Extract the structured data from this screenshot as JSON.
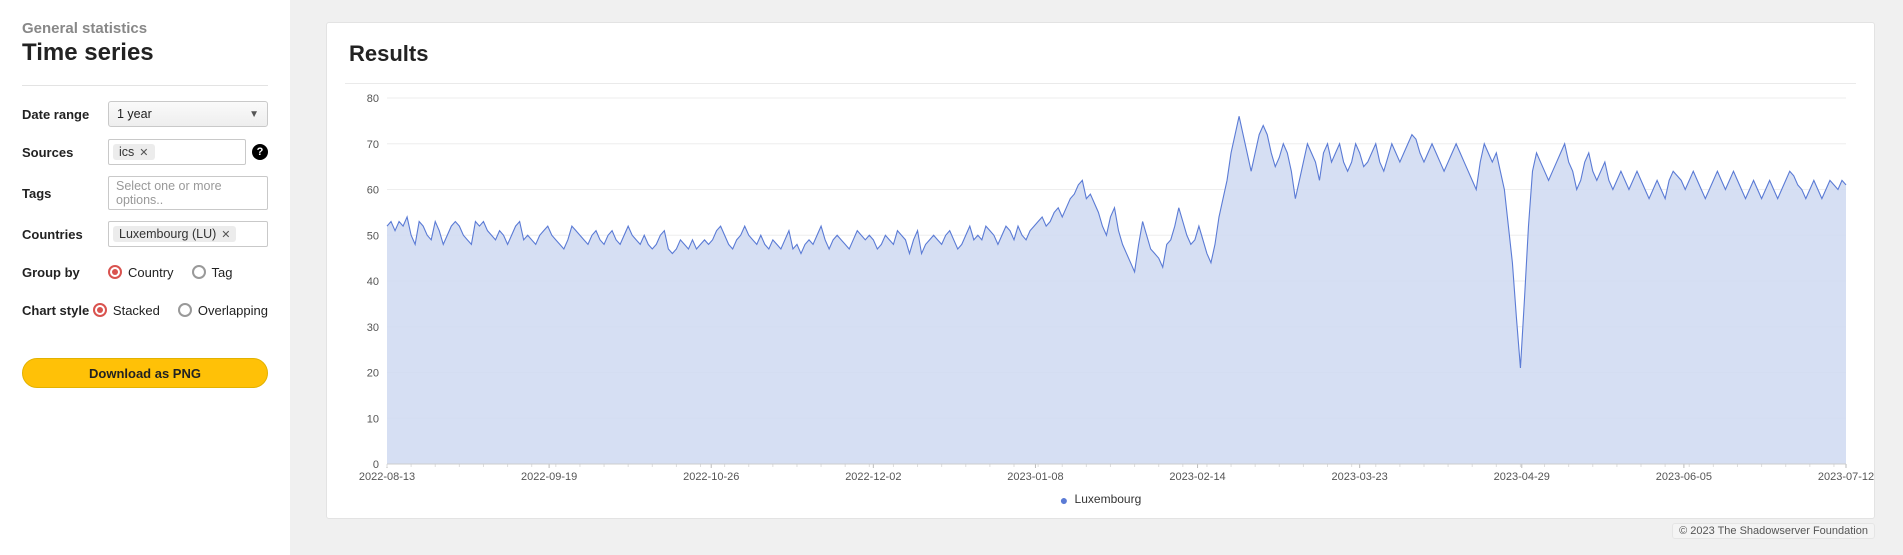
{
  "sidebar": {
    "subtitle": "General statistics",
    "title": "Time series",
    "fields": {
      "date_range": {
        "label": "Date range",
        "value": "1 year"
      },
      "sources": {
        "label": "Sources",
        "chips": [
          "ics"
        ],
        "has_help": true
      },
      "tags": {
        "label": "Tags",
        "placeholder": "Select one or more options.."
      },
      "countries": {
        "label": "Countries",
        "chips": [
          "Luxembourg (LU)"
        ]
      },
      "group_by": {
        "label": "Group by",
        "options": [
          "Country",
          "Tag"
        ],
        "selected": "Country"
      },
      "chart_style": {
        "label": "Chart style",
        "options": [
          "Stacked",
          "Overlapping"
        ],
        "selected": "Stacked"
      }
    },
    "download_label": "Download as PNG"
  },
  "panel": {
    "title": "Results",
    "chart": {
      "type": "area",
      "series_label": "Luxembourg",
      "line_color": "#5b7bd5",
      "fill_color": "#cfd9f1",
      "fill_opacity": 0.85,
      "background_color": "#ffffff",
      "grid_color": "#eeeeee",
      "axis_text_color": "#555555",
      "line_width": 1.1,
      "ylim": [
        0,
        80
      ],
      "ytick_step": 10,
      "x_labels": [
        "2022-08-13",
        "2022-09-19",
        "2022-10-26",
        "2022-12-02",
        "2023-01-08",
        "2023-02-14",
        "2023-03-23",
        "2023-04-29",
        "2023-06-05",
        "2023-07-12"
      ],
      "values": [
        52,
        53,
        51,
        53,
        52,
        54,
        50,
        48,
        53,
        52,
        50,
        49,
        53,
        51,
        48,
        50,
        52,
        53,
        52,
        50,
        49,
        48,
        53,
        52,
        53,
        51,
        50,
        49,
        51,
        50,
        48,
        50,
        52,
        53,
        49,
        50,
        49,
        48,
        50,
        51,
        52,
        50,
        49,
        48,
        47,
        49,
        52,
        51,
        50,
        49,
        48,
        50,
        51,
        49,
        48,
        50,
        51,
        49,
        48,
        50,
        52,
        50,
        49,
        48,
        50,
        48,
        47,
        48,
        50,
        51,
        47,
        46,
        47,
        49,
        48,
        47,
        49,
        47,
        48,
        49,
        48,
        49,
        51,
        52,
        50,
        48,
        47,
        49,
        50,
        52,
        50,
        49,
        48,
        50,
        48,
        47,
        49,
        48,
        47,
        49,
        51,
        47,
        48,
        46,
        48,
        49,
        48,
        50,
        52,
        49,
        47,
        49,
        50,
        49,
        48,
        47,
        49,
        51,
        50,
        49,
        50,
        49,
        47,
        48,
        50,
        49,
        48,
        51,
        50,
        49,
        46,
        49,
        51,
        46,
        48,
        49,
        50,
        49,
        48,
        50,
        51,
        49,
        47,
        48,
        50,
        52,
        49,
        50,
        49,
        52,
        51,
        50,
        48,
        50,
        52,
        51,
        49,
        52,
        50,
        49,
        51,
        52,
        53,
        54,
        52,
        53,
        55,
        56,
        54,
        56,
        58,
        59,
        61,
        62,
        58,
        59,
        57,
        55,
        52,
        50,
        54,
        56,
        51,
        48,
        46,
        44,
        42,
        48,
        53,
        50,
        47,
        46,
        45,
        43,
        48,
        49,
        52,
        56,
        53,
        50,
        48,
        49,
        52,
        49,
        46,
        44,
        48,
        54,
        58,
        62,
        68,
        72,
        76,
        72,
        68,
        64,
        68,
        72,
        74,
        72,
        68,
        65,
        67,
        70,
        68,
        64,
        58,
        62,
        66,
        70,
        68,
        66,
        62,
        68,
        70,
        66,
        68,
        70,
        66,
        64,
        66,
        70,
        68,
        65,
        66,
        68,
        70,
        66,
        64,
        67,
        70,
        68,
        66,
        68,
        70,
        72,
        71,
        68,
        66,
        68,
        70,
        68,
        66,
        64,
        66,
        68,
        70,
        68,
        66,
        64,
        62,
        60,
        66,
        70,
        68,
        66,
        68,
        64,
        60,
        52,
        44,
        32,
        21,
        36,
        52,
        64,
        68,
        66,
        64,
        62,
        64,
        66,
        68,
        70,
        66,
        64,
        60,
        62,
        66,
        68,
        64,
        62,
        64,
        66,
        62,
        60,
        62,
        64,
        62,
        60,
        62,
        64,
        62,
        60,
        58,
        60,
        62,
        60,
        58,
        62,
        64,
        63,
        62,
        60,
        62,
        64,
        62,
        60,
        58,
        60,
        62,
        64,
        62,
        60,
        62,
        64,
        62,
        60,
        58,
        60,
        62,
        60,
        58,
        60,
        62,
        60,
        58,
        60,
        62,
        64,
        63,
        61,
        60,
        58,
        60,
        62,
        60,
        58,
        60,
        62,
        61,
        60,
        62,
        61
      ]
    }
  },
  "footer": "© 2023 The Shadowserver Foundation"
}
